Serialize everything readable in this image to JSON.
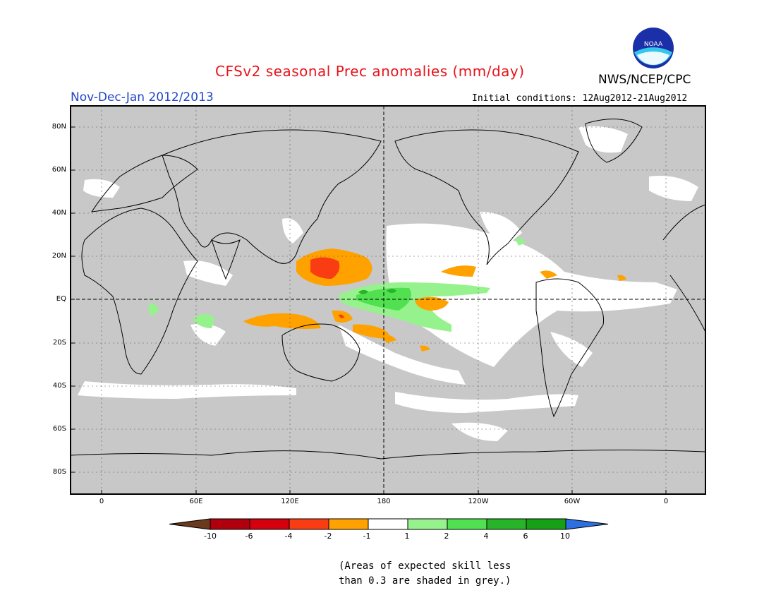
{
  "header": {
    "title": "CFSv2 seasonal Prec anomalies (mm/day)",
    "organization": "NWS/NCEP/CPC",
    "season": "Nov-Dec-Jan 2012/2013",
    "initial_conditions": "Initial conditions: 12Aug2012-21Aug2012",
    "logo_text": "NOAA"
  },
  "map": {
    "lat_labels": [
      "80N",
      "60N",
      "40N",
      "20N",
      "EQ",
      "20S",
      "40S",
      "60S",
      "80S"
    ],
    "lon_labels": [
      "0",
      "60E",
      "120E",
      "180",
      "120W",
      "60W",
      "0"
    ]
  },
  "colorbar": {
    "labels": [
      "-10",
      "-6",
      "-4",
      "-2",
      "-1",
      "1",
      "2",
      "4",
      "6",
      "10"
    ],
    "colors": [
      "#6b3a1e",
      "#b0000d",
      "#d4000e",
      "#fa3c13",
      "#ffa200",
      "#ffffff",
      "#96f28c",
      "#50e050",
      "#28b428",
      "#16a016",
      "#2b6fe0"
    ]
  },
  "footnote": {
    "line1": "(Areas of expected skill less",
    "line2": "than 0.3 are shaded in grey.)"
  },
  "colors": {
    "grey_low_skill": "#c8c8c8",
    "title": "#e8141b",
    "season": "#2244cc"
  }
}
